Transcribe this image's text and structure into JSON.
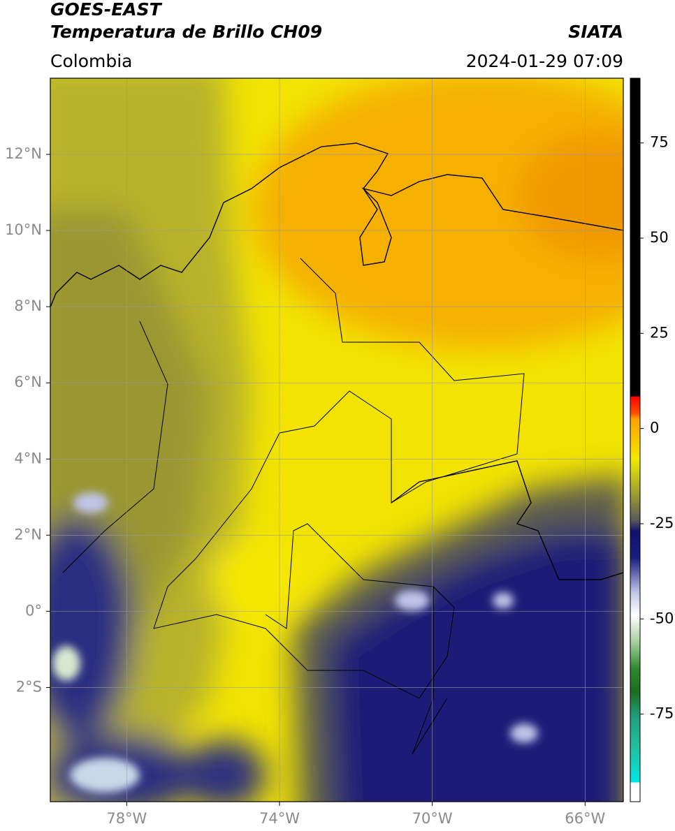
{
  "header": {
    "title": "GOES-EAST",
    "subtitle": "Temperatura de Brillo CH09",
    "source": "SIATA",
    "region": "Colombia",
    "datetime": "2024-01-29 07:09"
  },
  "map": {
    "xlim": [
      -80,
      -65
    ],
    "ylim": [
      -5,
      14
    ],
    "xticks": [
      {
        "value": -78,
        "label": "78°W"
      },
      {
        "value": -74,
        "label": "74°W"
      },
      {
        "value": -70,
        "label": "70°W"
      },
      {
        "value": -66,
        "label": "66°W"
      }
    ],
    "yticks": [
      {
        "value": 12,
        "label": "12°N"
      },
      {
        "value": 10,
        "label": "10°N"
      },
      {
        "value": 8,
        "label": "8°N"
      },
      {
        "value": 6,
        "label": "6°N"
      },
      {
        "value": 4,
        "label": "4°N"
      },
      {
        "value": 2,
        "label": "2°N"
      },
      {
        "value": 0,
        "label": "0°"
      },
      {
        "value": -2,
        "label": "2°S"
      }
    ],
    "grid": true,
    "grid_color": "#9a9a9a"
  },
  "colorbar": {
    "clim": [
      -98,
      92
    ],
    "ticks": [
      75,
      50,
      25,
      0,
      -25,
      -50,
      -75
    ],
    "stops": [
      {
        "value": -98,
        "color": "#ffffff"
      },
      {
        "value": -93,
        "color": "#ffffff"
      },
      {
        "value": -92.9,
        "color": "#00e6e6"
      },
      {
        "value": -84,
        "color": "#20c0a0"
      },
      {
        "value": -76,
        "color": "#20a080"
      },
      {
        "value": -69,
        "color": "#1e6e1e"
      },
      {
        "value": -63,
        "color": "#2f8a2f"
      },
      {
        "value": -56,
        "color": "#a8d0a0"
      },
      {
        "value": -49,
        "color": "#ffffff"
      },
      {
        "value": -43,
        "color": "#c0c4e8"
      },
      {
        "value": -34,
        "color": "#1a1e80"
      },
      {
        "value": -27,
        "color": "#10126e"
      },
      {
        "value": -24,
        "color": "#5a5a5a"
      },
      {
        "value": -19,
        "color": "#8c8c3a"
      },
      {
        "value": -8,
        "color": "#f0ea00"
      },
      {
        "value": 2.5,
        "color": "#ffa000"
      },
      {
        "value": 4,
        "color": "#ff5000"
      },
      {
        "value": 8.4,
        "color": "#ff0000"
      },
      {
        "value": 8.5,
        "color": "#000000"
      },
      {
        "value": 92,
        "color": "#000000"
      }
    ]
  }
}
